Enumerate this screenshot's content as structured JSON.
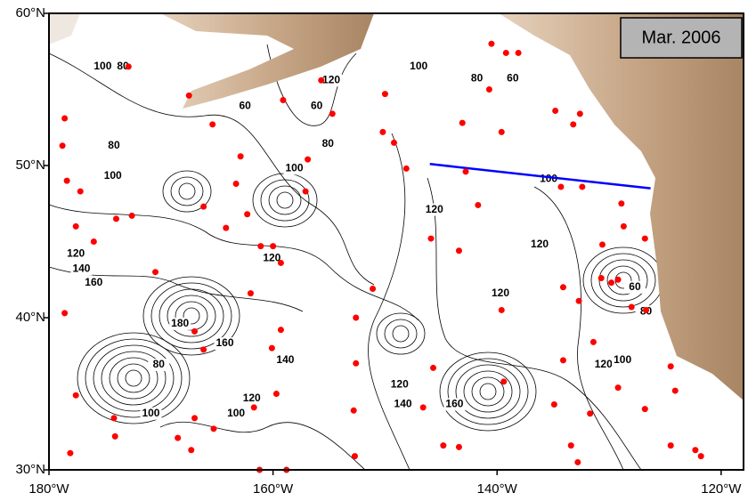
{
  "chart_data": {
    "type": "map",
    "title": "Mar. 2006",
    "xlim": [
      -180,
      -118
    ],
    "ylim": [
      30,
      60
    ],
    "xticks": [
      {
        "value": -180,
        "label": "180°W"
      },
      {
        "value": -160,
        "label": "160°W"
      },
      {
        "value": -140,
        "label": "140°W"
      },
      {
        "value": -120,
        "label": "120°W"
      }
    ],
    "yticks": [
      {
        "value": 30,
        "label": "30°N"
      },
      {
        "value": 40,
        "label": "40°N"
      },
      {
        "value": 50,
        "label": "50°N"
      },
      {
        "value": 60,
        "label": "60°N"
      }
    ],
    "points": {
      "color": "#ff0000",
      "x": [
        -178.6,
        -178.8,
        -178.4,
        -177.2,
        -177.6,
        -176.0,
        -174.0,
        -172.6,
        -170.5,
        -178.6,
        -177.6,
        -167.5,
        -165.4,
        -162.9,
        -163.3,
        -166.2,
        -162.3,
        -164.2,
        -161.1,
        -160.0,
        -159.3,
        -162.0,
        -167.0,
        -166.2,
        -159.3,
        -160.1,
        -159.7,
        -161.7,
        -167.0,
        -168.5,
        -167.3,
        -165.3,
        -161.2,
        -158.8,
        -156.9,
        -157.1,
        -159.1,
        -155.7,
        -154.7,
        -150.0,
        -150.2,
        -149.2,
        -148.1,
        -151.1,
        -152.6,
        -152.6,
        -152.8,
        -152.7,
        -145.9,
        -143.4,
        -145.7,
        -146.6,
        -144.8,
        -143.4,
        -143.1,
        -140.7,
        -140.5,
        -139.2,
        -138.1,
        -139.6,
        -141.7,
        -139.6,
        -139.4,
        -142.8,
        -134.8,
        -133.2,
        -132.6,
        -134.3,
        -132.4,
        -134.1,
        -132.7,
        -130.6,
        -130.7,
        -129.8,
        -129.2,
        -128.9,
        -128.7,
        -126.8,
        -128.0,
        -126.7,
        -131.4,
        -131.7,
        -134.1,
        -134.9,
        -133.4,
        -132.8,
        -129.2,
        -124.5,
        -124.1,
        -126.8,
        -124.5,
        -122.3,
        -121.8,
        -174.2,
        -174.1,
        -178.1,
        -172.9
      ],
      "y": [
        53.1,
        51.3,
        49.0,
        48.3,
        46.0,
        45.0,
        46.5,
        46.7,
        43.0,
        40.3,
        34.9,
        54.6,
        52.7,
        50.6,
        48.8,
        47.3,
        46.8,
        45.9,
        44.7,
        44.7,
        43.6,
        41.6,
        39.1,
        37.9,
        39.2,
        38.0,
        35.0,
        34.1,
        33.4,
        32.1,
        31.3,
        32.7,
        30.0,
        30.0,
        50.4,
        48.3,
        54.3,
        55.6,
        53.4,
        54.7,
        52.2,
        51.5,
        49.8,
        41.9,
        40.0,
        37.0,
        33.9,
        30.9,
        45.2,
        44.4,
        36.7,
        34.1,
        31.6,
        31.5,
        52.8,
        55.0,
        58.0,
        57.4,
        57.4,
        52.2,
        47.4,
        40.5,
        35.8,
        49.6,
        53.6,
        52.7,
        53.4,
        48.6,
        48.6,
        42.0,
        41.1,
        44.8,
        42.6,
        42.3,
        42.5,
        47.5,
        46.0,
        45.2,
        40.7,
        40.5,
        38.4,
        33.7,
        37.2,
        34.3,
        31.6,
        30.5,
        35.4,
        36.8,
        35.2,
        34.0,
        31.6,
        31.3,
        30.9,
        33.4,
        32.2,
        31.1,
        56.5
      ]
    },
    "line": {
      "color": "#0000ff",
      "x": [
        -146.0,
        -126.3
      ],
      "y": [
        50.1,
        48.5
      ]
    },
    "contour_labels": [
      {
        "value": 100,
        "x": -175.2,
        "y": 56.5
      },
      {
        "value": 80,
        "x": -173.4,
        "y": 56.5
      },
      {
        "value": 120,
        "x": -154.8,
        "y": 55.6
      },
      {
        "value": 60,
        "x": -156.1,
        "y": 53.9
      },
      {
        "value": 60,
        "x": -162.5,
        "y": 53.9
      },
      {
        "value": 80,
        "x": -174.2,
        "y": 51.3
      },
      {
        "value": 100,
        "x": -174.3,
        "y": 49.3
      },
      {
        "value": 100,
        "x": -158.1,
        "y": 49.8
      },
      {
        "value": 80,
        "x": -155.1,
        "y": 51.4
      },
      {
        "value": 120,
        "x": -177.6,
        "y": 44.2
      },
      {
        "value": 140,
        "x": -177.1,
        "y": 43.2
      },
      {
        "value": 160,
        "x": -176.0,
        "y": 42.3
      },
      {
        "value": 120,
        "x": -160.1,
        "y": 43.9
      },
      {
        "value": 100,
        "x": -147.0,
        "y": 56.5
      },
      {
        "value": 80,
        "x": -141.8,
        "y": 55.7
      },
      {
        "value": 60,
        "x": -138.6,
        "y": 55.7
      },
      {
        "value": 120,
        "x": -145.6,
        "y": 47.1
      },
      {
        "value": 100,
        "x": -135.4,
        "y": 49.1
      },
      {
        "value": 120,
        "x": -136.2,
        "y": 44.8
      },
      {
        "value": 120,
        "x": -139.7,
        "y": 41.6
      },
      {
        "value": 60,
        "x": -127.7,
        "y": 42.0
      },
      {
        "value": 80,
        "x": -126.7,
        "y": 40.4
      },
      {
        "value": 180,
        "x": -168.3,
        "y": 39.6
      },
      {
        "value": 160,
        "x": -164.3,
        "y": 38.3
      },
      {
        "value": 140,
        "x": -158.9,
        "y": 37.2
      },
      {
        "value": 80,
        "x": -170.2,
        "y": 36.9
      },
      {
        "value": 120,
        "x": -161.9,
        "y": 34.7
      },
      {
        "value": 100,
        "x": -170.9,
        "y": 33.7
      },
      {
        "value": 100,
        "x": -163.3,
        "y": 33.7
      },
      {
        "value": 120,
        "x": -148.7,
        "y": 35.6
      },
      {
        "value": 140,
        "x": -148.4,
        "y": 34.3
      },
      {
        "value": 160,
        "x": -143.8,
        "y": 34.3
      },
      {
        "value": 120,
        "x": -130.5,
        "y": 36.9
      },
      {
        "value": 100,
        "x": -128.8,
        "y": 37.2
      }
    ]
  }
}
